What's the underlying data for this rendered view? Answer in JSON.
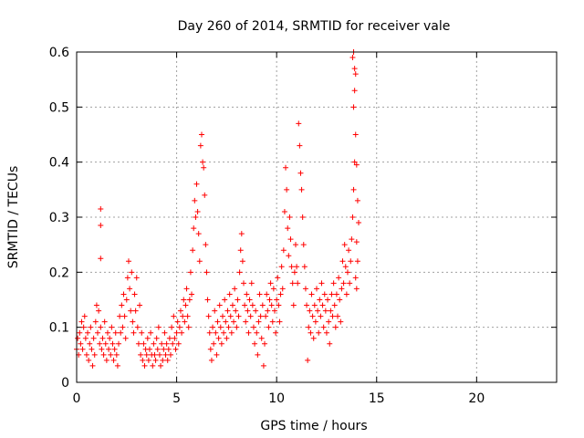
{
  "chart_data": {
    "type": "scatter",
    "title": "Day 260 of 2014, SRMTID for receiver vale",
    "xlabel": "GPS time / hours",
    "ylabel": "SRMTID / TECUs",
    "xlim": [
      0,
      24
    ],
    "ylim": [
      0,
      0.6
    ],
    "xticks": [
      0,
      5,
      10,
      15,
      20
    ],
    "xtick_labels": [
      "0",
      "5",
      "10",
      "15",
      "20"
    ],
    "yticks": [
      0,
      0.1,
      0.2,
      0.3,
      0.4,
      0.5,
      0.6
    ],
    "ytick_labels": [
      "0",
      "0.1",
      "0.2",
      "0.3",
      "0.4",
      "0.5",
      "0.6"
    ],
    "grid": true,
    "marker": "+",
    "color": "#ff0000",
    "series": [
      {
        "name": "SRMTID",
        "points": [
          [
            0.0,
            0.06
          ],
          [
            0.05,
            0.08
          ],
          [
            0.1,
            0.05
          ],
          [
            0.15,
            0.09
          ],
          [
            0.2,
            0.07
          ],
          [
            0.25,
            0.11
          ],
          [
            0.3,
            0.06
          ],
          [
            0.35,
            0.1
          ],
          [
            0.4,
            0.12
          ],
          [
            0.45,
            0.08
          ],
          [
            0.5,
            0.05
          ],
          [
            0.55,
            0.09
          ],
          [
            0.6,
            0.04
          ],
          [
            0.65,
            0.07
          ],
          [
            0.7,
            0.1
          ],
          [
            0.75,
            0.06
          ],
          [
            0.8,
            0.03
          ],
          [
            0.85,
            0.08
          ],
          [
            0.9,
            0.05
          ],
          [
            0.95,
            0.11
          ],
          [
            1.0,
            0.14
          ],
          [
            1.05,
            0.09
          ],
          [
            1.1,
            0.13
          ],
          [
            1.15,
            0.07
          ],
          [
            1.2,
            0.1
          ],
          [
            1.25,
            0.06
          ],
          [
            1.2,
            0.315
          ],
          [
            1.2,
            0.285
          ],
          [
            1.2,
            0.225
          ],
          [
            1.3,
            0.08
          ],
          [
            1.35,
            0.05
          ],
          [
            1.4,
            0.11
          ],
          [
            1.45,
            0.07
          ],
          [
            1.5,
            0.04
          ],
          [
            1.55,
            0.09
          ],
          [
            1.6,
            0.06
          ],
          [
            1.65,
            0.08
          ],
          [
            1.7,
            0.05
          ],
          [
            1.75,
            0.1
          ],
          [
            1.8,
            0.07
          ],
          [
            1.85,
            0.04
          ],
          [
            1.9,
            0.06
          ],
          [
            1.95,
            0.09
          ],
          [
            2.0,
            0.05
          ],
          [
            2.05,
            0.03
          ],
          [
            2.1,
            0.07
          ],
          [
            2.15,
            0.12
          ],
          [
            2.2,
            0.09
          ],
          [
            2.25,
            0.14
          ],
          [
            2.3,
            0.1
          ],
          [
            2.35,
            0.16
          ],
          [
            2.4,
            0.12
          ],
          [
            2.45,
            0.08
          ],
          [
            2.5,
            0.15
          ],
          [
            2.55,
            0.19
          ],
          [
            2.6,
            0.22
          ],
          [
            2.65,
            0.17
          ],
          [
            2.7,
            0.13
          ],
          [
            2.75,
            0.2
          ],
          [
            2.8,
            0.11
          ],
          [
            2.85,
            0.09
          ],
          [
            2.9,
            0.16
          ],
          [
            2.95,
            0.13
          ],
          [
            3.0,
            0.19
          ],
          [
            3.05,
            0.1
          ],
          [
            3.1,
            0.07
          ],
          [
            3.15,
            0.14
          ],
          [
            3.2,
            0.05
          ],
          [
            3.25,
            0.09
          ],
          [
            3.3,
            0.04
          ],
          [
            3.35,
            0.07
          ],
          [
            3.4,
            0.03
          ],
          [
            3.45,
            0.06
          ],
          [
            3.5,
            0.05
          ],
          [
            3.55,
            0.08
          ],
          [
            3.6,
            0.04
          ],
          [
            3.65,
            0.06
          ],
          [
            3.7,
            0.09
          ],
          [
            3.75,
            0.05
          ],
          [
            3.8,
            0.03
          ],
          [
            3.85,
            0.07
          ],
          [
            3.9,
            0.05
          ],
          [
            3.95,
            0.04
          ],
          [
            4.0,
            0.08
          ],
          [
            4.05,
            0.06
          ],
          [
            4.1,
            0.1
          ],
          [
            4.15,
            0.05
          ],
          [
            4.2,
            0.03
          ],
          [
            4.25,
            0.07
          ],
          [
            4.3,
            0.04
          ],
          [
            4.35,
            0.06
          ],
          [
            4.4,
            0.09
          ],
          [
            4.45,
            0.05
          ],
          [
            4.5,
            0.07
          ],
          [
            4.55,
            0.04
          ],
          [
            4.6,
            0.06
          ],
          [
            4.65,
            0.08
          ],
          [
            4.7,
            0.05
          ],
          [
            4.75,
            0.1
          ],
          [
            4.8,
            0.07
          ],
          [
            4.85,
            0.12
          ],
          [
            4.9,
            0.08
          ],
          [
            4.95,
            0.06
          ],
          [
            5.0,
            0.09
          ],
          [
            5.05,
            0.11
          ],
          [
            5.1,
            0.07
          ],
          [
            5.15,
            0.1
          ],
          [
            5.2,
            0.13
          ],
          [
            5.25,
            0.09
          ],
          [
            5.3,
            0.12
          ],
          [
            5.35,
            0.15
          ],
          [
            5.4,
            0.11
          ],
          [
            5.45,
            0.14
          ],
          [
            5.5,
            0.17
          ],
          [
            5.55,
            0.12
          ],
          [
            5.6,
            0.1
          ],
          [
            5.65,
            0.15
          ],
          [
            5.7,
            0.2
          ],
          [
            5.75,
            0.16
          ],
          [
            5.8,
            0.24
          ],
          [
            5.85,
            0.28
          ],
          [
            5.9,
            0.33
          ],
          [
            5.95,
            0.3
          ],
          [
            6.0,
            0.36
          ],
          [
            6.05,
            0.31
          ],
          [
            6.1,
            0.27
          ],
          [
            6.15,
            0.22
          ],
          [
            6.2,
            0.43
          ],
          [
            6.25,
            0.45
          ],
          [
            6.3,
            0.4
          ],
          [
            6.35,
            0.39
          ],
          [
            6.4,
            0.34
          ],
          [
            6.45,
            0.25
          ],
          [
            6.5,
            0.2
          ],
          [
            6.55,
            0.15
          ],
          [
            6.6,
            0.12
          ],
          [
            6.65,
            0.09
          ],
          [
            6.7,
            0.06
          ],
          [
            6.75,
            0.04
          ],
          [
            6.8,
            0.1
          ],
          [
            6.85,
            0.07
          ],
          [
            6.9,
            0.13
          ],
          [
            6.95,
            0.09
          ],
          [
            7.0,
            0.05
          ],
          [
            7.05,
            0.11
          ],
          [
            7.1,
            0.08
          ],
          [
            7.15,
            0.14
          ],
          [
            7.2,
            0.1
          ],
          [
            7.25,
            0.07
          ],
          [
            7.3,
            0.12
          ],
          [
            7.35,
            0.09
          ],
          [
            7.4,
            0.15
          ],
          [
            7.45,
            0.11
          ],
          [
            7.5,
            0.08
          ],
          [
            7.55,
            0.13
          ],
          [
            7.6,
            0.1
          ],
          [
            7.65,
            0.16
          ],
          [
            7.7,
            0.12
          ],
          [
            7.75,
            0.09
          ],
          [
            7.8,
            0.14
          ],
          [
            7.85,
            0.11
          ],
          [
            7.9,
            0.17
          ],
          [
            7.95,
            0.13
          ],
          [
            8.0,
            0.1
          ],
          [
            8.05,
            0.15
          ],
          [
            8.1,
            0.12
          ],
          [
            8.15,
            0.2
          ],
          [
            8.2,
            0.24
          ],
          [
            8.25,
            0.27
          ],
          [
            8.3,
            0.22
          ],
          [
            8.35,
            0.18
          ],
          [
            8.4,
            0.14
          ],
          [
            8.45,
            0.11
          ],
          [
            8.5,
            0.16
          ],
          [
            8.55,
            0.13
          ],
          [
            8.6,
            0.09
          ],
          [
            8.65,
            0.15
          ],
          [
            8.7,
            0.12
          ],
          [
            8.75,
            0.18
          ],
          [
            8.8,
            0.14
          ],
          [
            8.85,
            0.1
          ],
          [
            8.9,
            0.07
          ],
          [
            8.95,
            0.13
          ],
          [
            9.0,
            0.09
          ],
          [
            9.05,
            0.05
          ],
          [
            9.1,
            0.11
          ],
          [
            9.15,
            0.16
          ],
          [
            9.2,
            0.12
          ],
          [
            9.25,
            0.08
          ],
          [
            9.3,
            0.14
          ],
          [
            9.35,
            0.03
          ],
          [
            9.4,
            0.07
          ],
          [
            9.45,
            0.12
          ],
          [
            9.5,
            0.16
          ],
          [
            9.55,
            0.13
          ],
          [
            9.6,
            0.1
          ],
          [
            9.65,
            0.15
          ],
          [
            9.7,
            0.18
          ],
          [
            9.75,
            0.14
          ],
          [
            9.8,
            0.11
          ],
          [
            9.85,
            0.17
          ],
          [
            9.9,
            0.13
          ],
          [
            9.95,
            0.09
          ],
          [
            10.0,
            0.15
          ],
          [
            10.05,
            0.19
          ],
          [
            10.1,
            0.14
          ],
          [
            10.15,
            0.11
          ],
          [
            10.2,
            0.16
          ],
          [
            10.25,
            0.21
          ],
          [
            10.3,
            0.17
          ],
          [
            10.35,
            0.24
          ],
          [
            10.4,
            0.31
          ],
          [
            10.45,
            0.39
          ],
          [
            10.5,
            0.35
          ],
          [
            10.55,
            0.28
          ],
          [
            10.6,
            0.23
          ],
          [
            10.65,
            0.3
          ],
          [
            10.7,
            0.26
          ],
          [
            10.75,
            0.21
          ],
          [
            10.8,
            0.18
          ],
          [
            10.85,
            0.14
          ],
          [
            10.9,
            0.2
          ],
          [
            10.95,
            0.25
          ],
          [
            11.0,
            0.21
          ],
          [
            11.05,
            0.18
          ],
          [
            11.1,
            0.47
          ],
          [
            11.15,
            0.43
          ],
          [
            11.2,
            0.38
          ],
          [
            11.25,
            0.35
          ],
          [
            11.3,
            0.3
          ],
          [
            11.35,
            0.25
          ],
          [
            11.4,
            0.21
          ],
          [
            11.45,
            0.17
          ],
          [
            11.5,
            0.14
          ],
          [
            11.55,
            0.04
          ],
          [
            11.6,
            0.1
          ],
          [
            11.65,
            0.13
          ],
          [
            11.7,
            0.09
          ],
          [
            11.75,
            0.16
          ],
          [
            11.8,
            0.12
          ],
          [
            11.85,
            0.08
          ],
          [
            11.9,
            0.14
          ],
          [
            11.95,
            0.11
          ],
          [
            12.0,
            0.17
          ],
          [
            12.05,
            0.13
          ],
          [
            12.1,
            0.09
          ],
          [
            12.15,
            0.15
          ],
          [
            12.2,
            0.12
          ],
          [
            12.25,
            0.18
          ],
          [
            12.3,
            0.14
          ],
          [
            12.35,
            0.1
          ],
          [
            12.4,
            0.16
          ],
          [
            12.45,
            0.13
          ],
          [
            12.5,
            0.09
          ],
          [
            12.55,
            0.15
          ],
          [
            12.6,
            0.11
          ],
          [
            12.65,
            0.07
          ],
          [
            12.7,
            0.13
          ],
          [
            12.75,
            0.16
          ],
          [
            12.8,
            0.12
          ],
          [
            12.85,
            0.18
          ],
          [
            12.9,
            0.14
          ],
          [
            12.95,
            0.1
          ],
          [
            13.0,
            0.16
          ],
          [
            13.05,
            0.12
          ],
          [
            13.1,
            0.19
          ],
          [
            13.15,
            0.15
          ],
          [
            13.2,
            0.11
          ],
          [
            13.25,
            0.17
          ],
          [
            13.3,
            0.22
          ],
          [
            13.35,
            0.18
          ],
          [
            13.4,
            0.25
          ],
          [
            13.45,
            0.21
          ],
          [
            13.5,
            0.16
          ],
          [
            13.55,
            0.2
          ],
          [
            13.6,
            0.24
          ],
          [
            13.65,
            0.18
          ],
          [
            13.7,
            0.22
          ],
          [
            13.75,
            0.26
          ],
          [
            13.8,
            0.3
          ],
          [
            13.85,
            0.35
          ],
          [
            13.9,
            0.4
          ],
          [
            13.95,
            0.45
          ],
          [
            13.85,
            0.5
          ],
          [
            13.9,
            0.53
          ],
          [
            13.95,
            0.56
          ],
          [
            13.8,
            0.59
          ],
          [
            13.85,
            0.6
          ],
          [
            13.9,
            0.57
          ],
          [
            14.0,
            0.395
          ],
          [
            14.05,
            0.33
          ],
          [
            14.1,
            0.29
          ],
          [
            14.0,
            0.255
          ],
          [
            14.05,
            0.22
          ],
          [
            13.95,
            0.19
          ],
          [
            14.0,
            0.17
          ]
        ]
      }
    ]
  }
}
